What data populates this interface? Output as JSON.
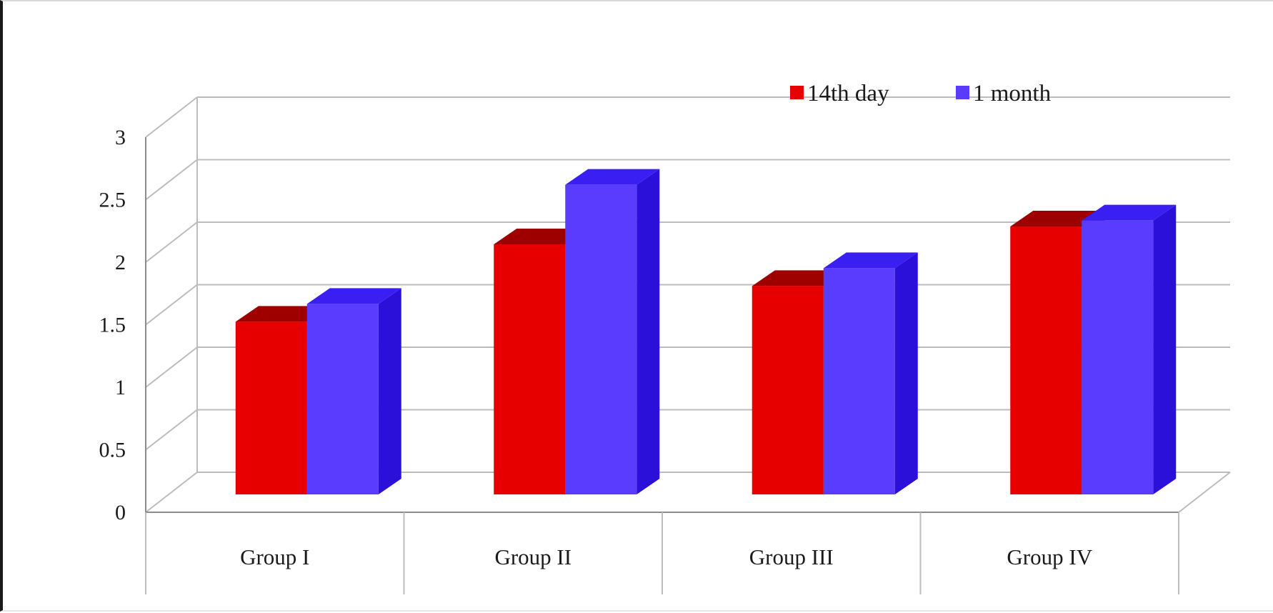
{
  "chart_data": {
    "type": "bar",
    "categories": [
      "Group I",
      "Group II",
      "Group III",
      "Group IV"
    ],
    "series": [
      {
        "name": "14th day",
        "values": [
          1.45,
          2.1,
          1.75,
          2.25
        ]
      },
      {
        "name": "1 month",
        "values": [
          1.6,
          2.6,
          1.9,
          2.3
        ]
      }
    ],
    "y_tick_labels": [
      "0",
      "0.5",
      "1",
      "1.5",
      "2",
      "2.5",
      "3"
    ],
    "ylim": [
      0,
      3
    ],
    "grid": true,
    "legend_position": "top-right",
    "title": "",
    "xlabel": "",
    "ylabel": ""
  },
  "colors": {
    "series": [
      {
        "front": "#e60000",
        "side": "#960000",
        "top": "#9e0000"
      },
      {
        "front": "#5a3cff",
        "side": "#2a10d9",
        "top": "#3a1ff2"
      }
    ],
    "grid": "#bcbcbc",
    "axis": "#8c8c8c"
  }
}
